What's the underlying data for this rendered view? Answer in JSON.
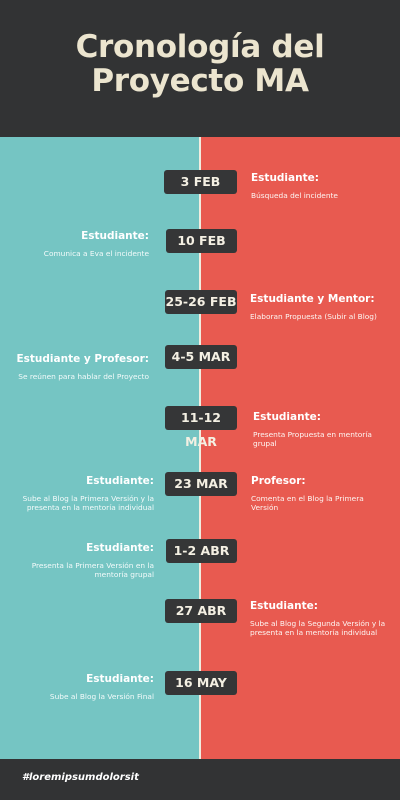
{
  "header": {
    "title_line1": "Cronología del",
    "title_line2": "Proyecto MA"
  },
  "colors": {
    "header_bg": "#323334",
    "left_panel": "#75c5c3",
    "right_panel": "#e85a50",
    "pill": "#353637",
    "title": "#ece5cf"
  },
  "timeline": [
    {
      "date": "3 FEB",
      "side": "right",
      "who": "Estudiante:",
      "what": "Búsqueda del incidente"
    },
    {
      "date": "10 FEB",
      "side": "left",
      "who": "Estudiante:",
      "what": "Comunica a Eva el incidente"
    },
    {
      "date": "25-26 FEB",
      "side": "right",
      "who": "Estudiante y Mentor:",
      "what": "Elaboran Propuesta (Subir al Blog)"
    },
    {
      "date": "4-5 MAR",
      "side": "left",
      "who": "Estudiante y Profesor:",
      "what": "Se reúnen para hablar del Proyecto"
    },
    {
      "date": "11-12 MAR",
      "side": "right",
      "who": "Estudiante:",
      "what": "Presenta Propuesta en mentoría grupal"
    },
    {
      "date": "23 MAR",
      "side": "both",
      "who": "Estudiante:",
      "what": "Sube al Blog la Primera Versión y la presenta en la mentoría individual",
      "who2": "Profesor:",
      "what2": "Comenta en el Blog la Primera Versión"
    },
    {
      "date": "1-2 ABR",
      "side": "left",
      "who": "Estudiante:",
      "what": "Presenta la Primera Versión en la mentoría grupal"
    },
    {
      "date": "27 ABR",
      "side": "right",
      "who": "Estudiante:",
      "what": "Sube al Blog la Segunda Versión y la presenta en la mentoría individual"
    },
    {
      "date": "16 MAY",
      "side": "left",
      "who": "Estudiante:",
      "what": "Sube al Blog la Versión Final"
    }
  ],
  "footer": {
    "hashtag": "#loremipsumdolorsit"
  }
}
